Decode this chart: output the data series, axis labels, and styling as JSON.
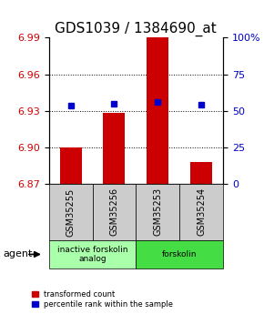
{
  "title": "GDS1039 / 1384690_at",
  "samples": [
    "GSM35255",
    "GSM35256",
    "GSM35253",
    "GSM35254"
  ],
  "bar_values": [
    6.9,
    6.928,
    6.99,
    6.888
  ],
  "percentile_values": [
    6.934,
    6.936,
    6.937,
    6.935
  ],
  "ymin": 6.87,
  "ymax": 6.99,
  "yticks_left": [
    6.87,
    6.9,
    6.93,
    6.96,
    6.99
  ],
  "yticks_right": [
    0,
    25,
    50,
    75,
    100
  ],
  "bar_color": "#CC0000",
  "percentile_color": "#0000CC",
  "bar_bottom": 6.87,
  "groups": [
    {
      "label": "inactive forskolin\nanalog",
      "spans": [
        0,
        2
      ],
      "color": "#aaffaa"
    },
    {
      "label": "forskolin",
      "spans": [
        2,
        4
      ],
      "color": "#44dd44"
    }
  ],
  "sample_row_color": "#cccccc",
  "agent_label": "agent",
  "legend_red_label": "transformed count",
  "legend_blue_label": "percentile rank within the sample",
  "dotted_yticks": [
    6.9,
    6.93,
    6.96
  ],
  "title_fontsize": 11,
  "tick_fontsize": 8,
  "sample_fontsize": 7
}
